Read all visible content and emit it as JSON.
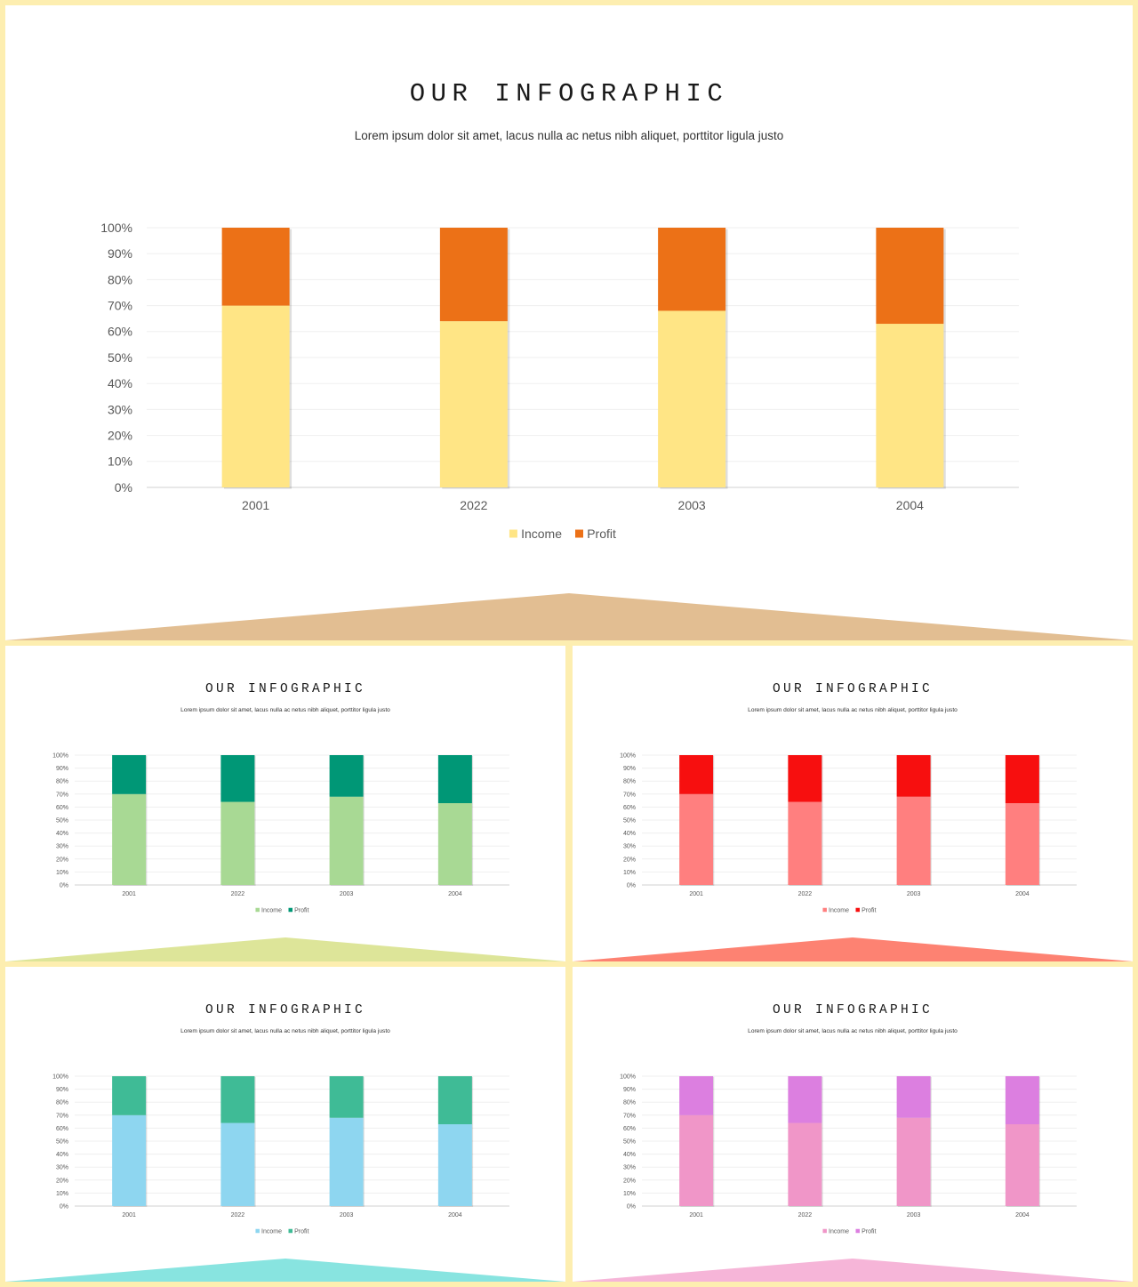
{
  "slides": [
    {
      "title": "OUR INFOGRAPHIC",
      "subtitle": "Lorem ipsum dolor sit amet, lacus nulla ac netus nibh aliquet, porttitor ligula justo",
      "colors": {
        "income": "#ffe585",
        "profit": "#ec7117",
        "accent": "#e2be92"
      }
    },
    {
      "title": "OUR INFOGRAPHIC",
      "subtitle": "Lorem ipsum dolor sit amet, lacus nulla ac netus nibh aliquet, porttitor ligula justo",
      "colors": {
        "income": "#a8d994",
        "profit": "#009776",
        "accent": "#dde599"
      }
    },
    {
      "title": "OUR INFOGRAPHIC",
      "subtitle": "Lorem ipsum dolor sit amet, lacus nulla ac netus nibh aliquet, porttitor ligula justo",
      "colors": {
        "income": "#ff7f7f",
        "profit": "#f70f0f",
        "accent": "#fd8272"
      }
    },
    {
      "title": "OUR INFOGRAPHIC",
      "subtitle": "Lorem ipsum dolor sit amet, lacus nulla ac netus nibh aliquet, porttitor ligula justo",
      "colors": {
        "income": "#8ed6f0",
        "profit": "#3fbb96",
        "accent": "#88e4e0"
      }
    },
    {
      "title": "OUR INFOGRAPHIC",
      "subtitle": "Lorem ipsum dolor sit amet, lacus nulla ac netus nibh aliquet, porttitor ligula justo",
      "colors": {
        "income": "#f096c8",
        "profit": "#dc7fe0",
        "accent": "#f6b5d8"
      }
    }
  ],
  "chart_data": {
    "type": "bar",
    "stacked": true,
    "categories": [
      "2001",
      "2022",
      "2003",
      "2004"
    ],
    "series": [
      {
        "name": "Income",
        "values": [
          70,
          64,
          68,
          63
        ]
      },
      {
        "name": "Profit",
        "values": [
          30,
          36,
          32,
          37
        ]
      }
    ],
    "yticks": [
      "0%",
      "10%",
      "20%",
      "30%",
      "40%",
      "50%",
      "60%",
      "70%",
      "80%",
      "90%",
      "100%"
    ],
    "ylim": [
      0,
      100
    ],
    "grid": true,
    "legend": "bottom"
  }
}
